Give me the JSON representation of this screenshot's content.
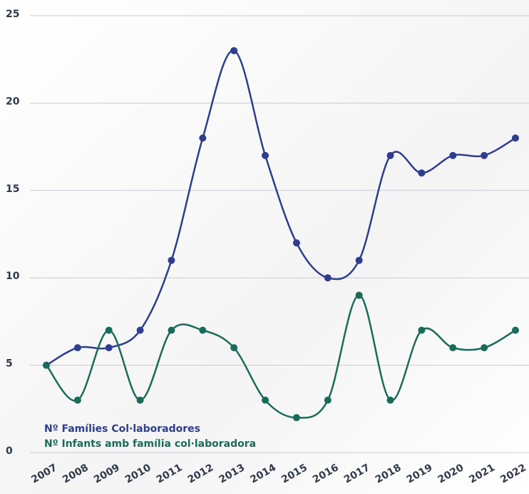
{
  "chart_data": {
    "type": "line",
    "categories": [
      "2007",
      "2008",
      "2009",
      "2010",
      "2011",
      "2012",
      "2013",
      "2014",
      "2015",
      "2016",
      "2017",
      "2018",
      "2019",
      "2020",
      "2021",
      "2022"
    ],
    "series": [
      {
        "name": "Nº Famílies Col·laboradores",
        "color": "#2e3e8c",
        "values": [
          5,
          6,
          6,
          7,
          11,
          18,
          23,
          17,
          12,
          10,
          11,
          17,
          16,
          17,
          17,
          18
        ]
      },
      {
        "name": "Nº Infants amb família col·laboradora",
        "color": "#1b6b5a",
        "values": [
          5,
          3,
          7,
          3,
          7,
          7,
          6,
          3,
          2,
          3,
          9,
          3,
          7,
          6,
          6,
          7
        ]
      }
    ],
    "ylim": [
      0,
      25
    ],
    "yticks": [
      0,
      5,
      10,
      15,
      20,
      25
    ],
    "grid": true,
    "smooth": true,
    "legend": "bottom-left"
  }
}
